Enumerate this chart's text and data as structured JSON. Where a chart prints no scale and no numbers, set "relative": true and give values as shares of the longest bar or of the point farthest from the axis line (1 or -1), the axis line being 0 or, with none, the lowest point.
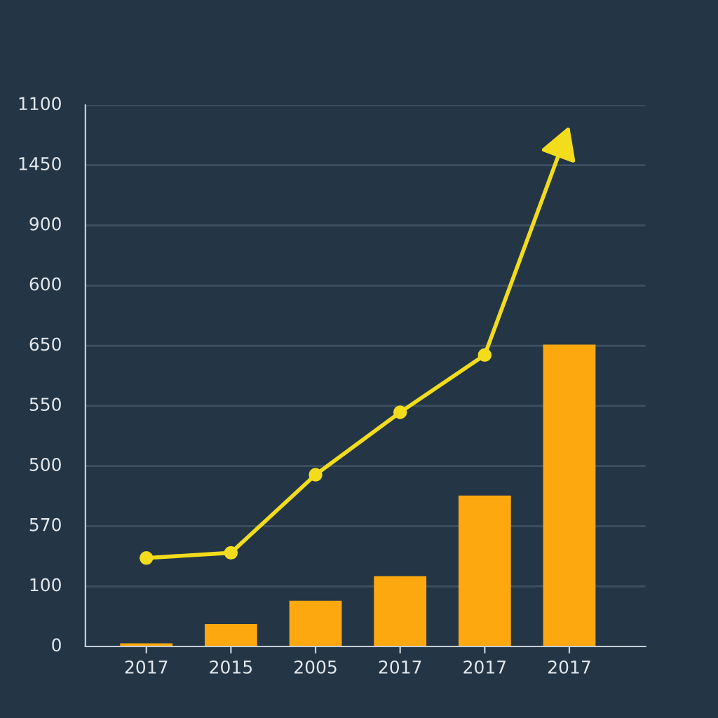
{
  "chart_data": {
    "type": "bar",
    "relative": true,
    "categories": [
      "2017",
      "2015",
      "2005",
      "2017",
      "2017",
      "2017"
    ],
    "series": [
      {
        "color": "#fca80e",
        "values": [
          0.006,
          0.043,
          0.088,
          0.135,
          0.29,
          0.58
        ]
      },
      {
        "type": "line",
        "color": "#f2dc1c",
        "marker": "circle",
        "values": [
          0.17,
          0.18,
          0.33,
          0.45,
          0.56,
          1.0
        ]
      }
    ],
    "annotations": [
      "0",
      "100",
      "570",
      "500",
      "550",
      "650",
      "600",
      "900",
      "1450",
      "1100"
    ],
    "grid": "y"
  }
}
